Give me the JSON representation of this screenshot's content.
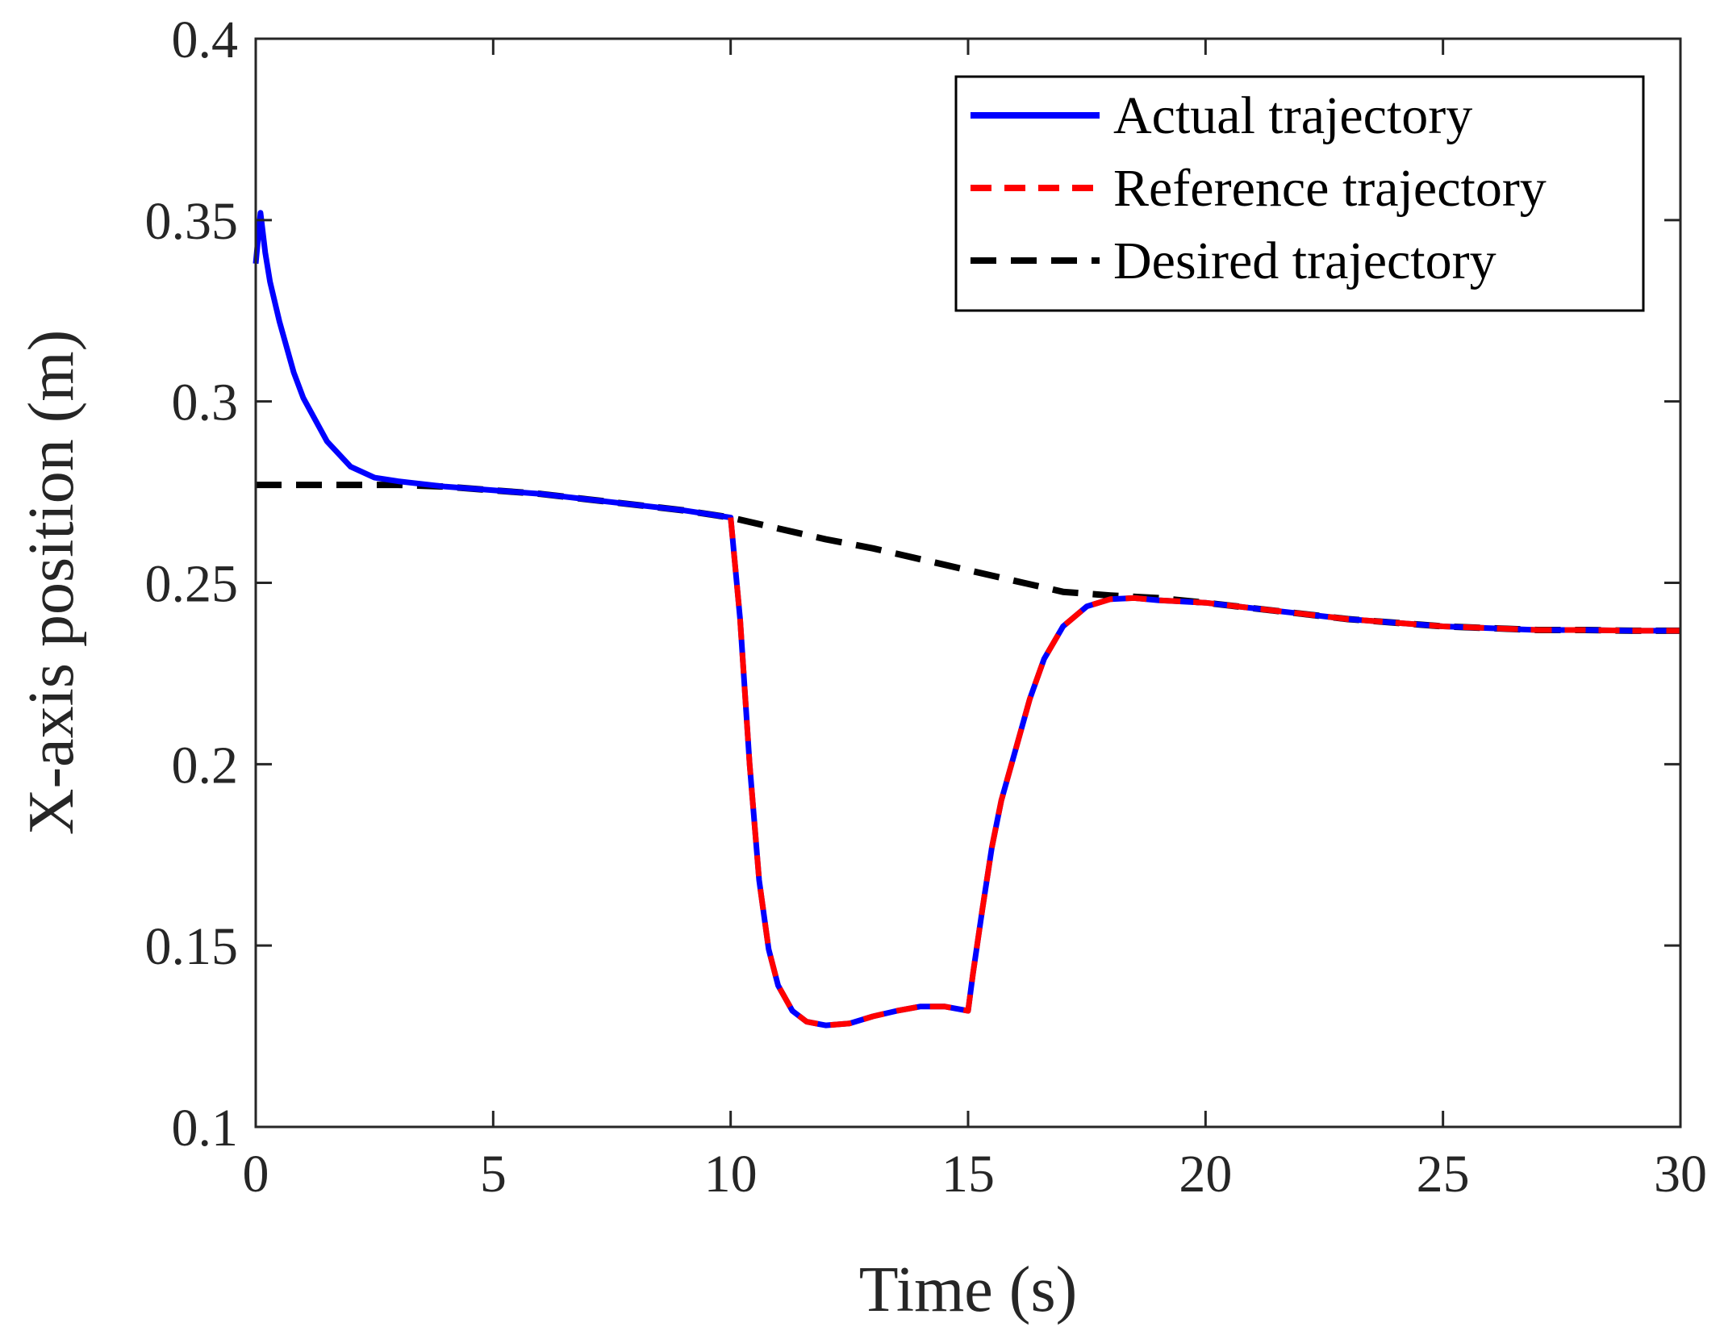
{
  "chart_data": {
    "type": "line",
    "title": "",
    "xlabel": "Time (s)",
    "ylabel": "X-axis position (m)",
    "xlim": [
      0,
      30
    ],
    "ylim": [
      0.1,
      0.4
    ],
    "xticks": [
      0,
      5,
      10,
      15,
      20,
      25,
      30
    ],
    "xtick_labels": [
      "0",
      "5",
      "10",
      "15",
      "20",
      "25",
      "30"
    ],
    "yticks": [
      0.1,
      0.15,
      0.2,
      0.25,
      0.3,
      0.35,
      0.4
    ],
    "ytick_labels": [
      "0.1",
      "0.15",
      "0.2",
      "0.25",
      "0.3",
      "0.35",
      "0.4"
    ],
    "grid": false,
    "legend_position": "top-right",
    "series": [
      {
        "name": "Actual trajectory",
        "color": "#0000ff",
        "style": "solid",
        "x": [
          0.0,
          0.1,
          0.2,
          0.3,
          0.5,
          0.8,
          1.0,
          1.5,
          2.0,
          2.5,
          3.0,
          4.0,
          5.0,
          6.0,
          7.0,
          8.0,
          9.0,
          10.0,
          10.2,
          10.4,
          10.6,
          10.8,
          11.0,
          11.3,
          11.6,
          12.0,
          12.5,
          13.0,
          13.5,
          14.0,
          14.5,
          15.0,
          15.1,
          15.3,
          15.5,
          15.7,
          16.0,
          16.3,
          16.6,
          17.0,
          17.5,
          18.0,
          18.5,
          19.0,
          20.0,
          21.0,
          22.0,
          23.0,
          24.0,
          25.0,
          26.0,
          27.0,
          28.0,
          29.0,
          30.0
        ],
        "y": [
          0.338,
          0.352,
          0.341,
          0.333,
          0.322,
          0.308,
          0.301,
          0.289,
          0.282,
          0.279,
          0.278,
          0.2765,
          0.2755,
          0.2745,
          0.273,
          0.2715,
          0.27,
          0.268,
          0.24,
          0.2,
          0.168,
          0.149,
          0.139,
          0.132,
          0.129,
          0.128,
          0.1285,
          0.1305,
          0.132,
          0.1332,
          0.1332,
          0.132,
          0.142,
          0.16,
          0.177,
          0.19,
          0.204,
          0.218,
          0.229,
          0.238,
          0.2435,
          0.2455,
          0.2458,
          0.2452,
          0.2445,
          0.243,
          0.2415,
          0.24,
          0.239,
          0.238,
          0.2375,
          0.237,
          0.237,
          0.2368,
          0.2368
        ]
      },
      {
        "name": "Reference trajectory",
        "color": "#ff0000",
        "style": "dashed",
        "x": [
          10.0,
          10.2,
          10.4,
          10.6,
          10.8,
          11.0,
          11.3,
          11.6,
          12.0,
          12.5,
          13.0,
          13.5,
          14.0,
          14.5,
          15.0,
          15.1,
          15.3,
          15.5,
          15.7,
          16.0,
          16.3,
          16.6,
          17.0,
          17.5,
          18.0,
          18.5,
          19.0,
          20.0,
          21.0,
          22.0,
          23.0,
          24.0,
          25.0,
          26.0,
          27.0,
          28.0,
          29.0,
          30.0
        ],
        "y": [
          0.268,
          0.24,
          0.2,
          0.168,
          0.149,
          0.139,
          0.132,
          0.129,
          0.128,
          0.1285,
          0.1305,
          0.132,
          0.1332,
          0.1332,
          0.132,
          0.142,
          0.16,
          0.177,
          0.19,
          0.204,
          0.218,
          0.229,
          0.238,
          0.2435,
          0.2455,
          0.2458,
          0.2452,
          0.2445,
          0.243,
          0.2415,
          0.24,
          0.239,
          0.238,
          0.2375,
          0.237,
          0.237,
          0.2368,
          0.2368
        ]
      },
      {
        "name": "Desired trajectory",
        "color": "#000000",
        "style": "dashed",
        "x": [
          0.0,
          2.0,
          3.0,
          4.0,
          5.0,
          6.0,
          7.0,
          8.0,
          9.0,
          10.0,
          11.0,
          12.0,
          13.0,
          14.0,
          15.0,
          16.0,
          17.0,
          18.0,
          19.0,
          20.0,
          21.0,
          22.0,
          23.0,
          24.0,
          25.0,
          26.0,
          27.0,
          28.0,
          29.0,
          30.0
        ],
        "y": [
          0.277,
          0.277,
          0.277,
          0.2765,
          0.2755,
          0.2745,
          0.273,
          0.2715,
          0.27,
          0.268,
          0.265,
          0.262,
          0.2595,
          0.2565,
          0.2535,
          0.2505,
          0.2475,
          0.2465,
          0.2458,
          0.2445,
          0.243,
          0.2415,
          0.24,
          0.239,
          0.238,
          0.2375,
          0.237,
          0.237,
          0.2368,
          0.2368
        ]
      }
    ]
  }
}
